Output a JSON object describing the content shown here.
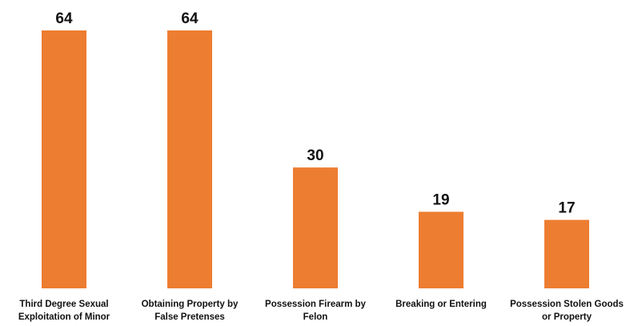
{
  "chart_data": {
    "type": "bar",
    "title": "",
    "xlabel": "",
    "ylabel": "",
    "categories": [
      [
        "Third Degree Sexual",
        "Exploitation of Minor"
      ],
      [
        "Obtaining Property by",
        "False Pretenses"
      ],
      [
        "Possession Firearm by",
        "Felon"
      ],
      [
        "Breaking or Entering"
      ],
      [
        "Possession Stolen Goods",
        "or Property"
      ]
    ],
    "values": [
      64,
      64,
      30,
      19,
      17
    ],
    "data_labels": [
      "64",
      "64",
      "30",
      "19",
      "17"
    ],
    "ylim": [
      0,
      64
    ],
    "grid": false,
    "legend": "none",
    "bar_color": "#ED7D31"
  }
}
